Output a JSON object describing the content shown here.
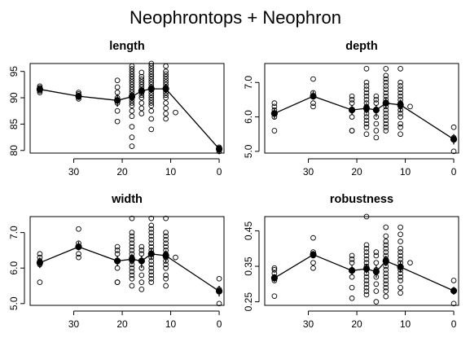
{
  "title": "Neophrontops + Neophron",
  "chart_data": [
    {
      "type": "scatter",
      "title": "length",
      "xlim": [
        39,
        -1
      ],
      "ylim": [
        79.5,
        96.5
      ],
      "xticks": [
        30,
        20,
        10,
        0
      ],
      "yticks": [
        80,
        85,
        90,
        95
      ],
      "groups": [
        {
          "x": 37,
          "mean": 91.6,
          "ci": [
            91.2,
            92.0
          ],
          "values": [
            91.0,
            91.3,
            91.6,
            91.9,
            92.2
          ]
        },
        {
          "x": 29,
          "mean": 90.3,
          "ci": [
            89.9,
            90.7
          ],
          "values": [
            89.8,
            90.1,
            90.4,
            90.7,
            91.0
          ]
        },
        {
          "x": 21,
          "mean": 89.5,
          "ci": [
            88.3,
            90.7
          ],
          "values": [
            85.5,
            87.5,
            89.0,
            90.0,
            91.0,
            92.0,
            93.3
          ]
        },
        {
          "x": 18,
          "mean": 90.2,
          "ci": [
            89.3,
            91.0
          ],
          "values": [
            80.8,
            82.5,
            84.5,
            86.5,
            87.5,
            88.5,
            89.0,
            89.5,
            90.0,
            90.5,
            91.0,
            91.5,
            92.0,
            92.5,
            93.0,
            93.5,
            94.0,
            94.5,
            95.0,
            95.5,
            96.0
          ]
        },
        {
          "x": 16,
          "mean": 91.3,
          "ci": [
            90.4,
            92.1
          ],
          "values": [
            87.0,
            88.0,
            89.0,
            90.0,
            90.5,
            91.0,
            91.5,
            92.0,
            92.5,
            93.0,
            93.5,
            94.0,
            94.8
          ]
        },
        {
          "x": 14,
          "mean": 91.7,
          "ci": [
            91.1,
            92.3
          ],
          "values": [
            84.0,
            86.0,
            87.5,
            88.5,
            89.0,
            89.5,
            90.0,
            90.5,
            91.0,
            91.5,
            92.0,
            92.5,
            93.0,
            93.5,
            94.0,
            94.5,
            95.0,
            95.5,
            96.0,
            96.5
          ]
        },
        {
          "x": 11,
          "mean": 91.7,
          "ci": [
            90.8,
            92.6
          ],
          "values": [
            86.0,
            87.0,
            88.0,
            89.0,
            90.0,
            90.5,
            91.0,
            91.5,
            92.0,
            92.5,
            93.0,
            93.5,
            94.0,
            94.5,
            95.0,
            96.0
          ]
        },
        {
          "x": 9,
          "mean": null,
          "ci": null,
          "values": [
            87.2
          ]
        },
        {
          "x": 0,
          "mean": 80.3,
          "ci": [
            79.9,
            80.7
          ],
          "values": [
            79.8,
            80.1,
            80.4,
            80.6
          ]
        }
      ]
    },
    {
      "type": "scatter",
      "title": "depth",
      "xlim": [
        39,
        -1
      ],
      "ylim": [
        4.95,
        7.55
      ],
      "xticks": [
        30,
        20,
        10,
        0
      ],
      "yticks": [
        5.0,
        6.0,
        7.0
      ],
      "ytick_labels": [
        "5.0",
        "6.0",
        "7.0"
      ],
      "groups": [
        {
          "x": 37,
          "mean": 6.1,
          "ci": [
            5.95,
            6.25
          ],
          "values": [
            5.6,
            6.0,
            6.1,
            6.2,
            6.3,
            6.4
          ]
        },
        {
          "x": 29,
          "mean": 6.6,
          "ci": [
            6.5,
            6.75
          ],
          "values": [
            6.3,
            6.4,
            6.6,
            6.7,
            7.1
          ]
        },
        {
          "x": 21,
          "mean": 6.2,
          "ci": [
            6.05,
            6.35
          ],
          "values": [
            5.6,
            5.6,
            6.0,
            6.2,
            6.4,
            6.5,
            6.6
          ]
        },
        {
          "x": 18,
          "mean": 6.25,
          "ci": [
            6.1,
            6.4
          ],
          "values": [
            5.5,
            5.7,
            5.8,
            5.9,
            6.0,
            6.1,
            6.2,
            6.3,
            6.4,
            6.5,
            6.6,
            6.7,
            6.8,
            6.9,
            7.0,
            7.4
          ]
        },
        {
          "x": 16,
          "mean": 6.2,
          "ci": [
            6.0,
            6.35
          ],
          "values": [
            5.4,
            5.6,
            5.8,
            6.0,
            6.2,
            6.4,
            6.5,
            6.6
          ]
        },
        {
          "x": 14,
          "mean": 6.4,
          "ci": [
            6.25,
            6.55
          ],
          "values": [
            5.6,
            5.7,
            5.8,
            5.9,
            6.0,
            6.1,
            6.2,
            6.3,
            6.4,
            6.5,
            6.6,
            6.7,
            6.8,
            6.9,
            7.0,
            7.1,
            7.2,
            7.4
          ]
        },
        {
          "x": 11,
          "mean": 6.35,
          "ci": [
            6.15,
            6.5
          ],
          "values": [
            5.5,
            5.7,
            5.8,
            6.0,
            6.1,
            6.2,
            6.3,
            6.4,
            6.5,
            6.6,
            6.7,
            6.8,
            6.9,
            7.0,
            7.4
          ]
        },
        {
          "x": 9,
          "mean": null,
          "ci": null,
          "values": [
            6.3
          ]
        },
        {
          "x": 0,
          "mean": 5.35,
          "ci": [
            5.2,
            5.5
          ],
          "values": [
            5.0,
            5.4,
            5.7
          ]
        }
      ]
    },
    {
      "type": "scatter",
      "title": "width",
      "xlim": [
        39,
        -1
      ],
      "ylim": [
        4.95,
        7.45
      ],
      "xticks": [
        30,
        20,
        10,
        0
      ],
      "yticks": [
        5.0,
        6.0,
        7.0
      ],
      "ytick_labels": [
        "5.0",
        "6.0",
        "7.0"
      ],
      "groups": [
        {
          "x": 37,
          "mean": 6.15,
          "ci": [
            6.0,
            6.3
          ],
          "values": [
            5.6,
            6.1,
            6.2,
            6.3,
            6.4
          ]
        },
        {
          "x": 29,
          "mean": 6.6,
          "ci": [
            6.5,
            6.75
          ],
          "values": [
            6.3,
            6.4,
            6.6,
            6.7,
            7.1
          ]
        },
        {
          "x": 21,
          "mean": 6.2,
          "ci": [
            6.05,
            6.35
          ],
          "values": [
            5.6,
            5.6,
            6.0,
            6.2,
            6.4,
            6.5,
            6.6
          ]
        },
        {
          "x": 18,
          "mean": 6.25,
          "ci": [
            6.1,
            6.4
          ],
          "values": [
            5.5,
            5.7,
            5.8,
            5.9,
            6.0,
            6.1,
            6.2,
            6.3,
            6.4,
            6.5,
            6.6,
            6.7,
            6.8,
            6.9,
            7.0,
            7.4
          ]
        },
        {
          "x": 16,
          "mean": 6.2,
          "ci": [
            6.0,
            6.35
          ],
          "values": [
            5.4,
            5.6,
            5.8,
            6.0,
            6.2,
            6.4,
            6.5,
            6.6
          ]
        },
        {
          "x": 14,
          "mean": 6.4,
          "ci": [
            6.25,
            6.55
          ],
          "values": [
            5.6,
            5.7,
            5.8,
            5.9,
            6.0,
            6.1,
            6.2,
            6.3,
            6.4,
            6.5,
            6.6,
            6.7,
            6.8,
            6.9,
            7.0,
            7.1,
            7.2,
            7.4
          ]
        },
        {
          "x": 11,
          "mean": 6.35,
          "ci": [
            6.15,
            6.5
          ],
          "values": [
            5.5,
            5.7,
            5.8,
            6.0,
            6.1,
            6.2,
            6.3,
            6.4,
            6.5,
            6.6,
            6.7,
            6.8,
            6.9,
            7.0,
            7.4
          ]
        },
        {
          "x": 9,
          "mean": null,
          "ci": null,
          "values": [
            6.3
          ]
        },
        {
          "x": 0,
          "mean": 5.35,
          "ci": [
            5.2,
            5.5
          ],
          "values": [
            5.0,
            5.4,
            5.7
          ]
        }
      ]
    },
    {
      "type": "scatter",
      "title": "robustness",
      "xlim": [
        39,
        -1
      ],
      "ylim": [
        0.24,
        0.49
      ],
      "xticks": [
        30,
        20,
        10,
        0
      ],
      "yticks": [
        0.25,
        0.35,
        0.45
      ],
      "ytick_labels": [
        "0.25",
        "0.35",
        "0.45"
      ],
      "groups": [
        {
          "x": 37,
          "mean": 0.317,
          "ci": [
            0.306,
            0.328
          ],
          "values": [
            0.266,
            0.31,
            0.32,
            0.33,
            0.34,
            0.345
          ]
        },
        {
          "x": 29,
          "mean": 0.383,
          "ci": [
            0.373,
            0.393
          ],
          "values": [
            0.345,
            0.36,
            0.38,
            0.39,
            0.43
          ]
        },
        {
          "x": 21,
          "mean": 0.338,
          "ci": [
            0.325,
            0.352
          ],
          "values": [
            0.26,
            0.29,
            0.32,
            0.34,
            0.36,
            0.37,
            0.38
          ]
        },
        {
          "x": 18,
          "mean": 0.343,
          "ci": [
            0.33,
            0.356
          ],
          "values": [
            0.27,
            0.28,
            0.29,
            0.3,
            0.31,
            0.32,
            0.33,
            0.34,
            0.35,
            0.36,
            0.37,
            0.38,
            0.39,
            0.4,
            0.41,
            0.49
          ]
        },
        {
          "x": 16,
          "mean": 0.335,
          "ci": [
            0.318,
            0.352
          ],
          "values": [
            0.25,
            0.28,
            0.3,
            0.32,
            0.34,
            0.36,
            0.38,
            0.39
          ]
        },
        {
          "x": 14,
          "mean": 0.365,
          "ci": [
            0.35,
            0.38
          ],
          "values": [
            0.265,
            0.28,
            0.29,
            0.3,
            0.31,
            0.32,
            0.33,
            0.34,
            0.35,
            0.36,
            0.37,
            0.38,
            0.39,
            0.4,
            0.41,
            0.42,
            0.435,
            0.46
          ]
        },
        {
          "x": 11,
          "mean": 0.348,
          "ci": [
            0.332,
            0.364
          ],
          "values": [
            0.275,
            0.29,
            0.31,
            0.32,
            0.33,
            0.34,
            0.35,
            0.36,
            0.37,
            0.38,
            0.39,
            0.4,
            0.42,
            0.44,
            0.46
          ]
        },
        {
          "x": 9,
          "mean": null,
          "ci": null,
          "values": [
            0.36
          ]
        },
        {
          "x": 0,
          "mean": 0.281,
          "ci": [
            0.27,
            0.292
          ],
          "values": [
            0.245,
            0.28,
            0.31
          ]
        }
      ]
    }
  ]
}
